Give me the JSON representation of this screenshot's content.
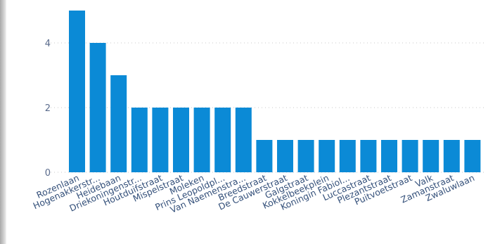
{
  "chart_data": {
    "type": "bar",
    "title": "",
    "xlabel": "",
    "ylabel": "",
    "categories": [
      "Rozenlaan",
      "Hogenakkerstr...",
      "Heidebaan",
      "Driekoningenstr...",
      "Houtduifstraat",
      "Mispelstraat",
      "Moleken",
      "Prins Leopoldpl...",
      "Van Naemenstra...",
      "Breedstraat",
      "De Cauwerstraat",
      "Galgstraat",
      "Kokkelbeekplein",
      "Koningin Fabiol...",
      "Luccastraat",
      "Plezantstraat",
      "Puitvoetstraat",
      "Valk",
      "Zamanstraat",
      "Zwaluwlaan"
    ],
    "values": [
      5,
      4,
      3,
      2,
      2,
      2,
      2,
      2,
      2,
      1,
      1,
      1,
      1,
      1,
      1,
      1,
      1,
      1,
      1,
      1
    ],
    "ylim": [
      0,
      5
    ],
    "yticks": [
      "0",
      "2",
      "4"
    ],
    "grid": true,
    "bar_color": "#0b8ad6",
    "grid_color": "#c9c9c9"
  }
}
